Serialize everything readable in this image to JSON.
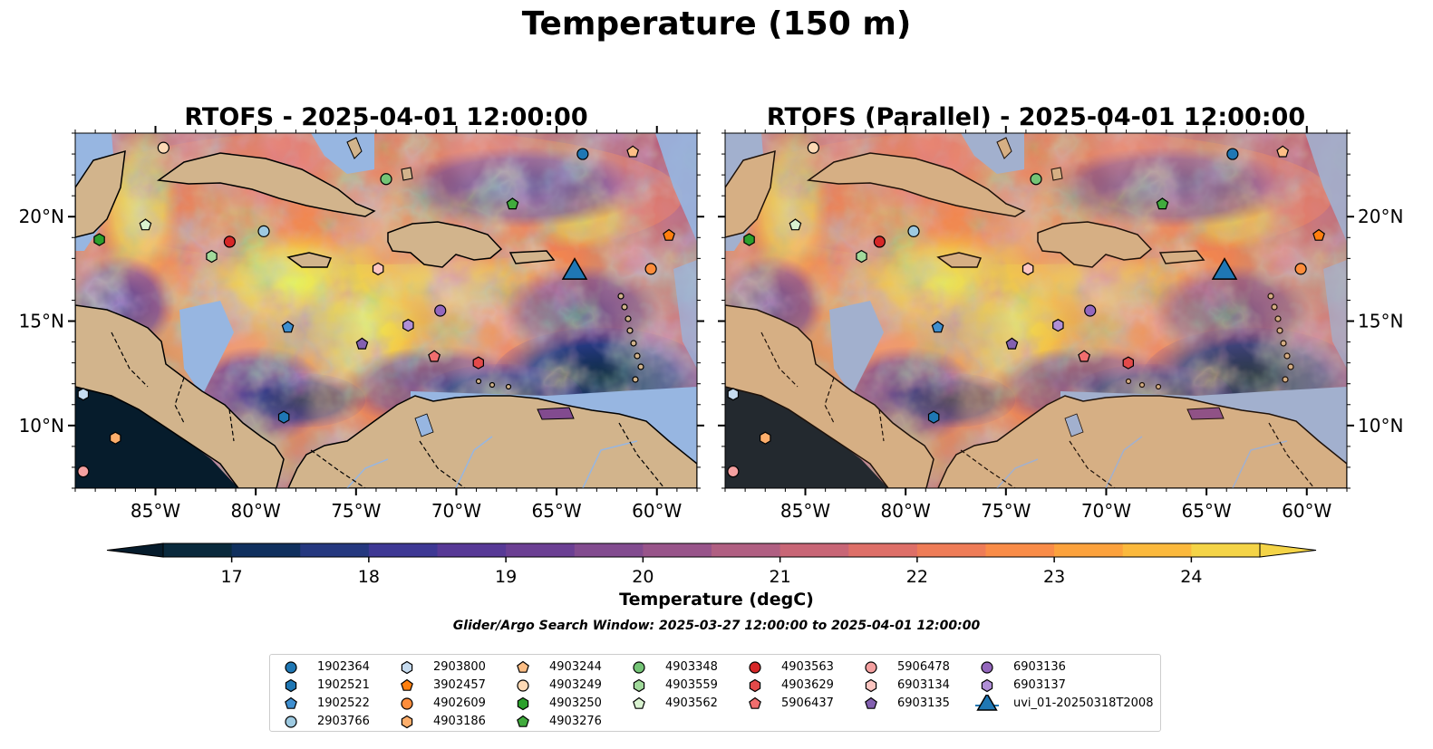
{
  "figure": {
    "title": "Temperature (150 m)",
    "window_note": "Glider/Argo Search Window: 2025-03-27 12:00:00 to 2025-04-01 12:00:00"
  },
  "chart_data": [
    {
      "type": "heatmap",
      "title": "RTOFS - 2025-04-01 12:00:00",
      "variable": "Temperature (degC)",
      "lon_range": [
        -89,
        -58
      ],
      "lat_range": [
        7,
        24
      ],
      "x_ticks": [
        "85°W",
        "80°W",
        "75°W",
        "70°W",
        "65°W",
        "60°W"
      ],
      "y_ticks": [
        "10°N",
        "15°N",
        "20°N"
      ],
      "y_tick_side": "left"
    },
    {
      "type": "heatmap",
      "title": "RTOFS (Parallel) - 2025-04-01 12:00:00",
      "variable": "Temperature (degC)",
      "lon_range": [
        -89,
        -58
      ],
      "lat_range": [
        7,
        24
      ],
      "x_ticks": [
        "85°W",
        "80°W",
        "75°W",
        "70°W",
        "65°W",
        "60°W"
      ],
      "y_ticks": [
        "10°N",
        "15°N",
        "20°N"
      ],
      "y_tick_side": "right"
    }
  ],
  "colorbar": {
    "label": "Temperature (degC)",
    "min": 16.5,
    "max": 24.5,
    "step": 0.5,
    "extend": "both",
    "ticks": [
      "17",
      "18",
      "19",
      "20",
      "21",
      "22",
      "23",
      "24"
    ],
    "colors": [
      "#0a2a3d",
      "#10305e",
      "#25387f",
      "#3e3894",
      "#573996",
      "#6b3f93",
      "#824b8f",
      "#98548a",
      "#b05f82",
      "#c86676",
      "#de6f68",
      "#ee7c57",
      "#f98c48",
      "#fca23d",
      "#fbb93d",
      "#f4d447",
      "#e9f35a",
      "#061c2c"
    ],
    "land_color": "#d2b48c",
    "shelf_color": "#97b6e1"
  },
  "legend": {
    "items": [
      {
        "label": "1902364",
        "marker": "circle",
        "color": "#1f77b4"
      },
      {
        "label": "1902521",
        "marker": "hexagon",
        "color": "#1f77b4"
      },
      {
        "label": "1902522",
        "marker": "pentagon",
        "color": "#3f8fd0"
      },
      {
        "label": "2903766",
        "marker": "circle",
        "color": "#9ecae1"
      },
      {
        "label": "2903800",
        "marker": "hexagon",
        "color": "#c6dbef"
      },
      {
        "label": "3902457",
        "marker": "pentagon",
        "color": "#ff7f0e"
      },
      {
        "label": "4902609",
        "marker": "circle",
        "color": "#fd8d3c"
      },
      {
        "label": "4903186",
        "marker": "hexagon",
        "color": "#fdae6b"
      },
      {
        "label": "4903244",
        "marker": "pentagon",
        "color": "#fdbe85"
      },
      {
        "label": "4903249",
        "marker": "circle",
        "color": "#fdd9b5"
      },
      {
        "label": "4903250",
        "marker": "hexagon",
        "color": "#2ca02c"
      },
      {
        "label": "4903276",
        "marker": "pentagon",
        "color": "#41ab3d"
      },
      {
        "label": "4903348",
        "marker": "circle",
        "color": "#74c476"
      },
      {
        "label": "4903559",
        "marker": "hexagon",
        "color": "#a1d99b"
      },
      {
        "label": "4903562",
        "marker": "pentagon",
        "color": "#d9f2d0"
      },
      {
        "label": "4903563",
        "marker": "circle",
        "color": "#d62728"
      },
      {
        "label": "4903629",
        "marker": "hexagon",
        "color": "#e34a4a"
      },
      {
        "label": "5906437",
        "marker": "pentagon",
        "color": "#f06e6e"
      },
      {
        "label": "5906478",
        "marker": "circle",
        "color": "#f4a0a0"
      },
      {
        "label": "6903134",
        "marker": "hexagon",
        "color": "#fcc5c0"
      },
      {
        "label": "6903135",
        "marker": "pentagon",
        "color": "#8360b0"
      },
      {
        "label": "6903136",
        "marker": "circle",
        "color": "#9467bd"
      },
      {
        "label": "6903137",
        "marker": "hexagon",
        "color": "#b08fd6"
      },
      {
        "label": "uvi_01-20250318T2008",
        "marker": "triangle",
        "color": "#1f77b4"
      }
    ]
  },
  "stations": [
    {
      "id": "4903249",
      "lon": -84.6,
      "lat": 23.3
    },
    {
      "id": "1902364",
      "lon": -63.7,
      "lat": 23.0
    },
    {
      "id": "4903244",
      "lon": -61.2,
      "lat": 23.1
    },
    {
      "id": "4903348",
      "lon": -73.5,
      "lat": 21.8
    },
    {
      "id": "4903276",
      "lon": -67.2,
      "lat": 20.6
    },
    {
      "id": "4903562",
      "lon": -85.5,
      "lat": 19.6
    },
    {
      "id": "4903250",
      "lon": -87.8,
      "lat": 18.9
    },
    {
      "id": "4903563",
      "lon": -81.3,
      "lat": 18.8
    },
    {
      "id": "2903766",
      "lon": -79.6,
      "lat": 19.3
    },
    {
      "id": "3902457",
      "lon": -59.4,
      "lat": 19.1
    },
    {
      "id": "4903559",
      "lon": -82.2,
      "lat": 18.1
    },
    {
      "id": "6903134",
      "lon": -73.9,
      "lat": 17.5
    },
    {
      "id": "4902609",
      "lon": -60.3,
      "lat": 17.5
    },
    {
      "id": "uvi_01-20250318T2008",
      "lon": -64.1,
      "lat": 17.5
    },
    {
      "id": "6903136",
      "lon": -70.8,
      "lat": 15.5
    },
    {
      "id": "6903137",
      "lon": -72.4,
      "lat": 14.8
    },
    {
      "id": "1902522",
      "lon": -78.4,
      "lat": 14.7
    },
    {
      "id": "6903135",
      "lon": -74.7,
      "lat": 13.9
    },
    {
      "id": "5906437",
      "lon": -71.1,
      "lat": 13.3
    },
    {
      "id": "4903629",
      "lon": -68.9,
      "lat": 13.0
    },
    {
      "id": "1902521",
      "lon": -78.6,
      "lat": 10.4
    },
    {
      "id": "2903800",
      "lon": -88.6,
      "lat": 11.5
    },
    {
      "id": "4903186",
      "lon": -87.0,
      "lat": 9.4
    },
    {
      "id": "5906478",
      "lon": -88.6,
      "lat": 7.8
    }
  ]
}
